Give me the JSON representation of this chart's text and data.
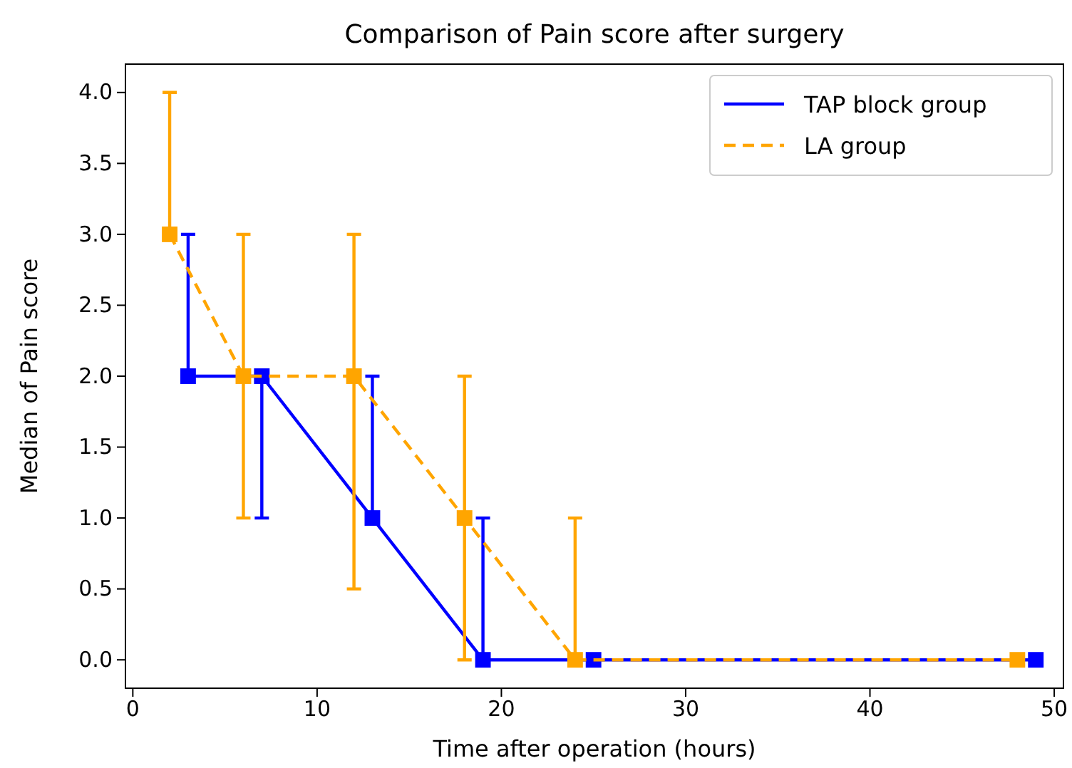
{
  "chart_data": {
    "type": "line",
    "title": "Comparison of Pain score after surgery",
    "xlabel": "Time after operation (hours)",
    "ylabel": "Median of Pain score",
    "xlim": [
      -0.4,
      50.5
    ],
    "xticks": [
      0,
      10,
      20,
      30,
      40,
      50
    ],
    "ylim": [
      -0.2,
      4.2
    ],
    "yticks": [
      {
        "value": 0,
        "label": "0.0"
      },
      {
        "value": 0.5,
        "label": "0.5"
      },
      {
        "value": 1,
        "label": "1.0"
      },
      {
        "value": 1.5,
        "label": "1.5"
      },
      {
        "value": 2,
        "label": "2.0"
      },
      {
        "value": 2.5,
        "label": "2.5"
      },
      {
        "value": 3,
        "label": "3.0"
      },
      {
        "value": 3.5,
        "label": "3.5"
      },
      {
        "value": 4,
        "label": "4.0"
      }
    ],
    "legend": "top right",
    "marker": "square",
    "grid": false,
    "series": [
      {
        "name": "TAP block group",
        "color": "#0000ff",
        "line_style": "solid",
        "x": [
          3,
          7,
          13,
          19,
          25,
          49
        ],
        "values": [
          2,
          2,
          1,
          0,
          0,
          0
        ],
        "errors": [
          [
            2,
            3
          ],
          [
            1,
            2
          ],
          [
            1,
            2
          ],
          [
            0,
            1
          ],
          null,
          null
        ]
      },
      {
        "name": "LA group",
        "color": "#ffa500",
        "line_style": "dashed",
        "x": [
          2,
          6,
          12,
          18,
          24,
          48
        ],
        "values": [
          3,
          2,
          2,
          1,
          0,
          0
        ],
        "errors": [
          [
            3,
            4
          ],
          [
            1,
            3
          ],
          [
            0.5,
            3
          ],
          [
            0,
            2
          ],
          [
            0,
            1
          ],
          null
        ]
      }
    ]
  }
}
